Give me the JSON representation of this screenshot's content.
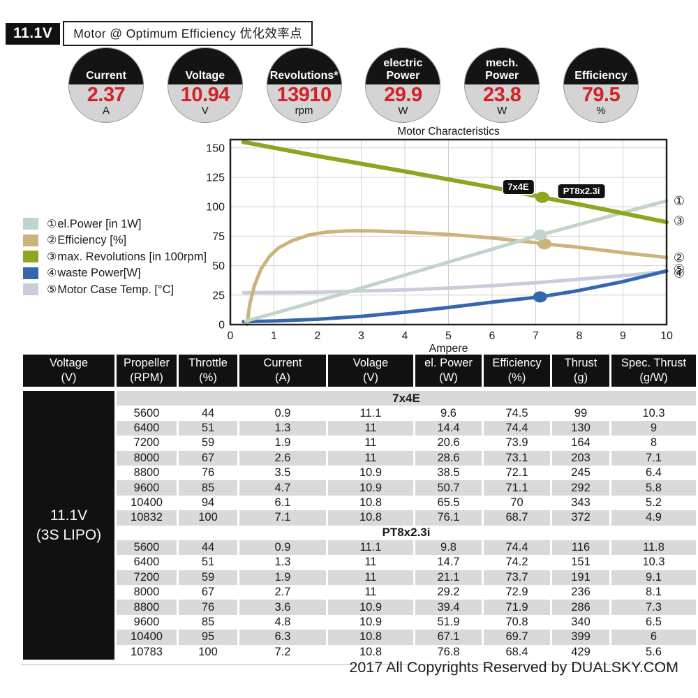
{
  "header": {
    "voltage_chip": "11.1V",
    "title": "Motor @ Optimum Efficiency  优化效率点"
  },
  "badges": [
    {
      "label": "Current",
      "value": "2.37",
      "unit": "A"
    },
    {
      "label": "Voltage",
      "value": "10.94",
      "unit": "V"
    },
    {
      "label": "Revolutions*",
      "value": "13910",
      "unit": "rpm"
    },
    {
      "label": "electric\nPower",
      "value": "29.9",
      "unit": "W"
    },
    {
      "label": "mech.\nPower",
      "value": "23.8",
      "unit": "W"
    },
    {
      "label": "Efficiency",
      "value": "79.5",
      "unit": "%"
    }
  ],
  "colors": {
    "value_red": "#d42027",
    "row_gray": "#d9d9d9",
    "header_black": "#111111"
  },
  "chart_data": {
    "type": "line",
    "title": "Motor Characteristics",
    "xlabel": "Ampere",
    "ylabel": "",
    "xlim": [
      0,
      10
    ],
    "ylim": [
      0,
      157
    ],
    "xticks": [
      0,
      1,
      2,
      3,
      4,
      5,
      6,
      7,
      8,
      9,
      10
    ],
    "yticks": [
      0,
      25,
      50,
      75,
      100,
      125,
      150
    ],
    "grid": true,
    "legend_position": "left-outside",
    "legend": [
      {
        "num": "①",
        "text": "el.Power [in 1W]",
        "color": "#c0d4c9"
      },
      {
        "num": "②",
        "text": "Efficiency [%]",
        "color": "#cbb47c"
      },
      {
        "num": "③",
        "text": "max. Revolutions [in 100rpm]",
        "color": "#8ca71f"
      },
      {
        "num": "④",
        "text": "waste Power[W]",
        "color": "#3467ae"
      },
      {
        "num": "⑤",
        "text": "Motor Case Temp. [°C]",
        "color": "#c9cdda"
      }
    ],
    "series": [
      {
        "name": "Motor Case Temp. [°C]",
        "color": "#c9cdda",
        "width": 5,
        "points": [
          [
            0.3,
            27
          ],
          [
            2,
            27.5
          ],
          [
            3,
            28.5
          ],
          [
            4,
            29.5
          ],
          [
            5,
            31
          ],
          [
            6,
            33
          ],
          [
            7,
            35.5
          ],
          [
            8,
            38.5
          ],
          [
            9,
            41.5
          ],
          [
            10,
            45
          ]
        ]
      },
      {
        "name": "waste Power[W]",
        "color": "#3467ae",
        "width": 5,
        "marker": [
          7.1,
          23.5
        ],
        "points": [
          [
            0.3,
            2.5
          ],
          [
            1,
            3
          ],
          [
            2,
            4.5
          ],
          [
            3,
            7
          ],
          [
            4,
            10.5
          ],
          [
            5,
            14.5
          ],
          [
            6,
            19
          ],
          [
            7.1,
            23.5
          ],
          [
            8,
            29
          ],
          [
            9,
            36.5
          ],
          [
            10,
            45.5
          ]
        ]
      },
      {
        "name": "Efficiency [%]",
        "color": "#cbb47c",
        "width": 5,
        "marker": [
          7.2,
          68.5
        ],
        "points": [
          [
            0.38,
            0
          ],
          [
            0.45,
            18
          ],
          [
            0.55,
            33
          ],
          [
            0.7,
            47
          ],
          [
            0.9,
            58
          ],
          [
            1.1,
            65
          ],
          [
            1.4,
            71
          ],
          [
            1.8,
            76
          ],
          [
            2.2,
            78.5
          ],
          [
            2.7,
            79.5
          ],
          [
            3.2,
            79.5
          ],
          [
            4,
            78.5
          ],
          [
            5,
            76.5
          ],
          [
            6,
            73.5
          ],
          [
            7,
            69.5
          ],
          [
            7.2,
            68.5
          ],
          [
            8,
            65.5
          ],
          [
            9,
            61
          ],
          [
            10,
            57
          ]
        ]
      },
      {
        "name": "el.Power [in 1W]",
        "color": "#c0d4c9",
        "width": 5,
        "marker": [
          7.1,
          76
        ],
        "points": [
          [
            0.35,
            3
          ],
          [
            1,
            9.5
          ],
          [
            2,
            20
          ],
          [
            3,
            31
          ],
          [
            4,
            42
          ],
          [
            5,
            53
          ],
          [
            6,
            64
          ],
          [
            7,
            75
          ],
          [
            8,
            85
          ],
          [
            9,
            95
          ],
          [
            10,
            105
          ]
        ]
      },
      {
        "name": "max. Revolutions [in 100rpm]",
        "color": "#8ca71f",
        "width": 6,
        "marker": [
          7.15,
          108
        ],
        "points": [
          [
            0.3,
            155
          ],
          [
            2,
            143
          ],
          [
            4,
            130
          ],
          [
            6,
            116.5
          ],
          [
            7.15,
            108
          ],
          [
            8,
            102
          ],
          [
            10,
            87
          ]
        ]
      }
    ],
    "annotations": [
      {
        "text": "7x4E",
        "x": 6.6,
        "y": 117
      },
      {
        "text": "PT8x2.3i",
        "x": 8.05,
        "y": 113
      }
    ],
    "right_labels": [
      {
        "text": "①",
        "y": 105
      },
      {
        "text": "③",
        "y": 88
      },
      {
        "text": "②",
        "y": 57
      },
      {
        "text": "⑤",
        "y": 47
      },
      {
        "text": "④",
        "y": 43.5
      }
    ]
  },
  "table": {
    "voltage_cell": "11.1V\n(3S LIPO)",
    "columns": [
      "Voltage\n(V)",
      "Propeller\n(RPM)",
      "Throttle\n(%)",
      "Current\n(A)",
      "Volage\n(V)",
      "el. Power\n(W)",
      "Efficiency\n(%)",
      "Thrust\n(g)",
      "Spec. Thrust\n(g/W)"
    ],
    "sections": [
      {
        "name": "7x4E",
        "rows": [
          [
            "5600",
            "44",
            "0.9",
            "11.1",
            "9.6",
            "74.5",
            "99",
            "10.3"
          ],
          [
            "6400",
            "51",
            "1.3",
            "11",
            "14.4",
            "74.4",
            "130",
            "9"
          ],
          [
            "7200",
            "59",
            "1.9",
            "11",
            "20.6",
            "73.9",
            "164",
            "8"
          ],
          [
            "8000",
            "67",
            "2.6",
            "11",
            "28.6",
            "73.1",
            "203",
            "7.1"
          ],
          [
            "8800",
            "76",
            "3.5",
            "10.9",
            "38.5",
            "72.1",
            "245",
            "6.4"
          ],
          [
            "9600",
            "85",
            "4.7",
            "10.9",
            "50.7",
            "71.1",
            "292",
            "5.8"
          ],
          [
            "10400",
            "94",
            "6.1",
            "10.8",
            "65.5",
            "70",
            "343",
            "5.2"
          ],
          [
            "10832",
            "100",
            "7.1",
            "10.8",
            "76.1",
            "68.7",
            "372",
            "4.9"
          ]
        ]
      },
      {
        "name": "PT8x2.3i",
        "rows": [
          [
            "5600",
            "44",
            "0.9",
            "11.1",
            "9.8",
            "74.4",
            "116",
            "11.8"
          ],
          [
            "6400",
            "51",
            "1.3",
            "11",
            "14.7",
            "74.2",
            "151",
            "10.3"
          ],
          [
            "7200",
            "59",
            "1.9",
            "11",
            "21.1",
            "73.7",
            "191",
            "9.1"
          ],
          [
            "8000",
            "67",
            "2.7",
            "11",
            "29.2",
            "72.9",
            "236",
            "8.1"
          ],
          [
            "8800",
            "76",
            "3.6",
            "10.9",
            "39.4",
            "71.9",
            "286",
            "7.3"
          ],
          [
            "9600",
            "85",
            "4.8",
            "10.9",
            "51.9",
            "70.8",
            "340",
            "6.5"
          ],
          [
            "10400",
            "95",
            "6.3",
            "10.8",
            "67.1",
            "69.7",
            "399",
            "6"
          ],
          [
            "10783",
            "100",
            "7.2",
            "10.8",
            "76.8",
            "68.4",
            "429",
            "5.6"
          ]
        ]
      }
    ]
  },
  "footer": {
    "copyright": "2017 All Copyrights Reserved by DUALSKY.COM"
  }
}
